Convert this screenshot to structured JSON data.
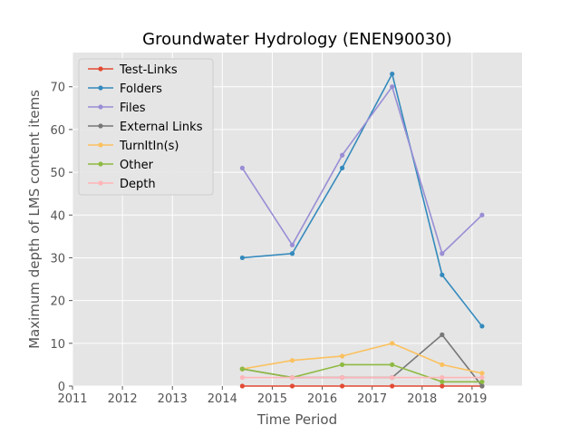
{
  "chart_data": {
    "type": "line",
    "title": "Groundwater Hydrology (ENEN90030)",
    "xlabel": "Time Period",
    "ylabel": "Maximum depth of LMS content items",
    "xlim": [
      2011,
      2020
    ],
    "ylim": [
      0,
      78
    ],
    "xticks": [
      2011,
      2012,
      2013,
      2014,
      2015,
      2016,
      2017,
      2018,
      2019
    ],
    "yticks": [
      0,
      10,
      20,
      30,
      40,
      50,
      60,
      70
    ],
    "grid": true,
    "legend_position": "top-left",
    "x": [
      2014.4,
      2015.4,
      2016.4,
      2017.4,
      2018.4,
      2019.2
    ],
    "series": [
      {
        "name": "Test-Links",
        "color": "#E24A33",
        "values": [
          0,
          0,
          0,
          0,
          0,
          0
        ]
      },
      {
        "name": "Folders",
        "color": "#348ABD",
        "values": [
          30,
          31,
          51,
          73,
          26,
          14
        ]
      },
      {
        "name": "Files",
        "color": "#988ED5",
        "values": [
          51,
          33,
          54,
          70,
          31,
          40
        ]
      },
      {
        "name": "External Links",
        "color": "#777777",
        "values": [
          4,
          2,
          2,
          2,
          12,
          0
        ]
      },
      {
        "name": "TurnItIn(s)",
        "color": "#FBC15E",
        "values": [
          4,
          6,
          7,
          10,
          5,
          3
        ]
      },
      {
        "name": "Other",
        "color": "#8EBA42",
        "values": [
          4,
          2,
          5,
          5,
          1,
          1
        ]
      },
      {
        "name": "Depth",
        "color": "#FFB5B8",
        "values": [
          2,
          2,
          2,
          2,
          2,
          2
        ]
      }
    ]
  }
}
